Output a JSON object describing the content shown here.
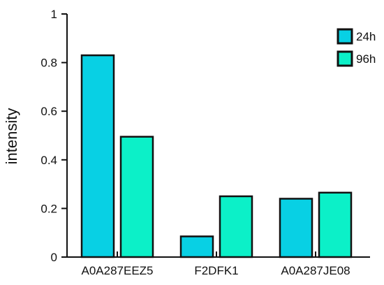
{
  "chart_data": {
    "type": "bar",
    "title": "",
    "xlabel": "",
    "ylabel": "intensity",
    "ylim": [
      0,
      1
    ],
    "yticks": [
      "0",
      "0.2",
      "0.4",
      "0.6",
      "0.8",
      "1"
    ],
    "categories": [
      "A0A287EEZ5",
      "F2DFK1",
      "A0A287JE08"
    ],
    "series": [
      {
        "name": "24h",
        "color": "#08d0e4",
        "values": [
          0.83,
          0.085,
          0.24
        ]
      },
      {
        "name": "96h",
        "color": "#0cf0c8",
        "values": [
          0.495,
          0.25,
          0.265
        ]
      }
    ],
    "legend_position": "top-right",
    "grid": false
  }
}
